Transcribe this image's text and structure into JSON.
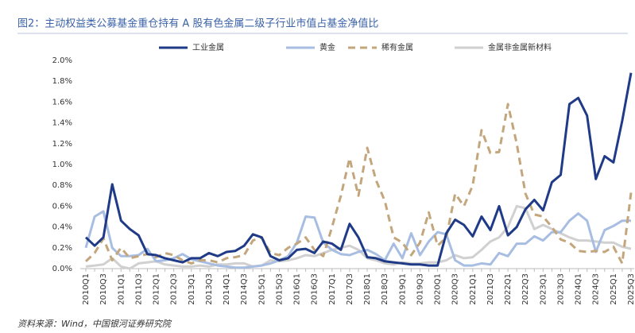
{
  "chart_data": {
    "type": "line",
    "title": "图2：主动权益类公募基金重仓持有 A 股有色金属二级子行业市值占基金净值比",
    "source": "资料来源：Wind，中国银河证券研究院",
    "categories": [
      "2010Q1",
      null,
      "2010Q3",
      null,
      "2011Q1",
      null,
      "2011Q3",
      null,
      "2012Q1",
      null,
      "2012Q3",
      null,
      "2013Q1",
      null,
      "2013Q3",
      null,
      "2014Q1",
      null,
      "2014Q3",
      null,
      "2015Q1",
      null,
      "2015Q3",
      null,
      "2016Q1",
      null,
      "2016Q3",
      null,
      "2017Q1",
      null,
      "2017Q3",
      null,
      "2018Q1",
      null,
      "2018Q3",
      null,
      "2019Q1",
      null,
      "2019Q3",
      null,
      "2020Q1",
      null,
      "2020Q3",
      null,
      "2021Q1",
      null,
      "2021Q3",
      null,
      "2022Q1",
      null,
      "2022Q3",
      null,
      "2023Q1",
      null,
      "2023Q3",
      null,
      "2024Q1",
      null,
      "2024Q3",
      null,
      "2025Q1",
      null,
      "2025Q3"
    ],
    "series": [
      {
        "name": "工业金属",
        "color": "#1f3b87",
        "dash": false,
        "values": [
          0.3,
          0.22,
          0.3,
          0.81,
          0.46,
          0.38,
          0.32,
          0.14,
          0.13,
          0.1,
          0.08,
          0.06,
          0.1,
          0.1,
          0.15,
          0.12,
          0.16,
          0.17,
          0.22,
          0.33,
          0.3,
          0.12,
          0.08,
          0.1,
          0.18,
          0.19,
          0.15,
          0.26,
          0.24,
          0.18,
          0.43,
          0.3,
          0.11,
          0.1,
          0.07,
          0.06,
          0.05,
          0.04,
          0.04,
          0.03,
          0.03,
          0.34,
          0.47,
          0.42,
          0.31,
          0.5,
          0.37,
          0.6,
          0.32,
          0.4,
          0.57,
          0.66,
          0.56,
          0.83,
          0.9,
          1.58,
          1.64,
          1.47,
          0.86,
          1.08,
          1.02,
          1.42,
          1.88
        ]
      },
      {
        "name": "黄金",
        "color": "#a8bde2",
        "dash": false,
        "values": [
          0.2,
          0.5,
          0.55,
          0.2,
          0.12,
          0.12,
          0.13,
          0.19,
          0.07,
          0.08,
          0.1,
          0.14,
          0.09,
          0.07,
          0.05,
          0.03,
          0.02,
          0.01,
          0.01,
          0.02,
          0.03,
          0.05,
          0.08,
          0.12,
          0.25,
          0.5,
          0.49,
          0.25,
          0.18,
          0.14,
          0.13,
          0.16,
          0.18,
          0.14,
          0.08,
          0.24,
          0.1,
          0.34,
          0.13,
          0.26,
          0.35,
          0.33,
          0.08,
          0.03,
          0.03,
          0.05,
          0.04,
          0.15,
          0.12,
          0.24,
          0.24,
          0.31,
          0.27,
          0.35,
          0.35,
          0.46,
          0.53,
          0.46,
          0.16,
          0.37,
          0.41,
          0.46,
          0.46
        ]
      },
      {
        "name": "稀有金属",
        "color": "#c3a67c",
        "dash": true,
        "values": [
          0.07,
          0.15,
          0.29,
          0.08,
          0.2,
          0.1,
          0.12,
          0.14,
          0.11,
          0.15,
          0.13,
          0.08,
          0.05,
          0.08,
          0.08,
          0.06,
          0.1,
          0.11,
          0.13,
          0.27,
          0.3,
          0.15,
          0.13,
          0.2,
          0.24,
          0.3,
          0.18,
          0.12,
          0.4,
          0.7,
          1.06,
          0.7,
          1.16,
          0.85,
          0.65,
          0.3,
          0.25,
          0.13,
          0.25,
          0.54,
          0.22,
          0.3,
          0.72,
          0.6,
          0.8,
          1.33,
          1.11,
          1.12,
          1.58,
          1.2,
          0.72,
          0.52,
          0.5,
          0.4,
          0.28,
          0.25,
          0.17,
          0.16,
          0.17,
          0.16,
          0.21,
          0.05,
          0.73
        ]
      },
      {
        "name": "金属非金属新材料",
        "color": "#d0d0d0",
        "dash": false,
        "values": [
          0.02,
          0.03,
          0.04,
          0.1,
          0.02,
          0.0,
          0.05,
          0.06,
          0.07,
          0.04,
          0.03,
          0.02,
          0.02,
          0.03,
          0.02,
          0.04,
          0.04,
          0.05,
          0.05,
          0.02,
          0.03,
          0.08,
          0.07,
          0.08,
          0.1,
          0.13,
          0.12,
          0.15,
          0.18,
          0.2,
          0.22,
          0.18,
          0.1,
          0.08,
          0.05,
          0.04,
          0.06,
          0.05,
          0.05,
          0.06,
          0.06,
          0.08,
          0.13,
          0.1,
          0.11,
          0.18,
          0.26,
          0.3,
          0.4,
          0.6,
          0.58,
          0.38,
          0.42,
          0.38,
          0.34,
          0.3,
          0.27,
          0.27,
          0.26,
          0.25,
          0.25,
          0.21,
          0.19
        ]
      }
    ],
    "ylim": [
      0,
      2.0
    ],
    "yticks": [
      {
        "value": 0,
        "label": "0.0%"
      },
      {
        "value": 0.2,
        "label": "0.2%"
      },
      {
        "value": 0.4,
        "label": "0.4%"
      },
      {
        "value": 0.6,
        "label": "0.6%"
      },
      {
        "value": 0.8,
        "label": "0.8%"
      },
      {
        "value": 1.0,
        "label": "1.0%"
      },
      {
        "value": 1.2,
        "label": "1.2%"
      },
      {
        "value": 1.4,
        "label": "1.4%"
      },
      {
        "value": 1.6,
        "label": "1.6%"
      },
      {
        "value": 1.8,
        "label": "1.8%"
      },
      {
        "value": 2.0,
        "label": "2.0%"
      }
    ],
    "legend": "top"
  }
}
